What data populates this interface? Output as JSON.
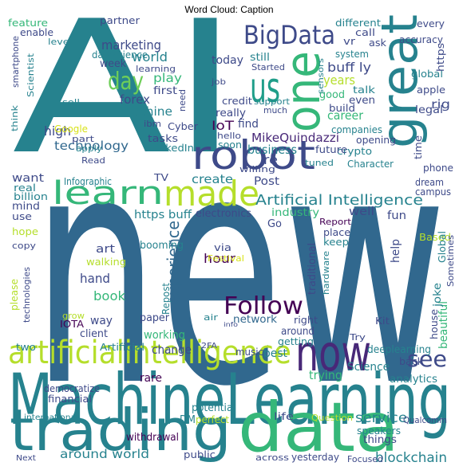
{
  "title": "Word Cloud: Caption",
  "words": [
    "AI",
    "new",
    "MachineLearning",
    "trading",
    "data",
    "great",
    "one",
    "us",
    "robot",
    "learn",
    "made",
    "BigData",
    "now",
    "artificialintelligence",
    "Follow",
    "day",
    "see",
    "experience",
    "Artificial Intelligence",
    "MikeQuindazzi",
    "blockchain",
    "around world",
    "service",
    "business",
    "technology",
    "high",
    "IoT",
    "find",
    "marketing",
    "world",
    "play",
    "first",
    "forex",
    "machine",
    "today",
    "still",
    "years",
    "buff ly",
    "career",
    "crypto",
    "create",
    "Post",
    "re",
    "https buff",
    "electronics",
    "industry",
    "well",
    "fun",
    "Go",
    "Report",
    "Based",
    "keep",
    "place",
    "help",
    "hour",
    "hand",
    "book",
    "art",
    "walking",
    "booming",
    "via",
    "Festival",
    "traditional",
    "hardware",
    "network",
    "Repost",
    "paper",
    "working",
    "change",
    "2FA",
    "best",
    "trying",
    "Science",
    "beautiful",
    "deeplearning",
    "back",
    "analytics",
    "Kit",
    "around",
    "getting",
    "right",
    "joke",
    "house",
    "Sometimes",
    "Global",
    "phone",
    "campus",
    "dream",
    "time",
    "Character",
    "tuned",
    "future",
    "companies",
    "opening",
    "talk",
    "good",
    "even",
    "build",
    "legal",
    "rig",
    "apple",
    "global",
    "accuracy",
    "system",
    "vr",
    "call",
    "ask",
    "different",
    "every",
    "https",
    "feature",
    "level",
    "enable",
    "partner",
    "datascience",
    "smartphone",
    "Scientist",
    "week",
    "learning",
    "sell",
    "think",
    "Google",
    "Read",
    "Infographic",
    "apply",
    "part",
    "LinkedIn",
    "tasks",
    "Cyber",
    "ibm",
    "want",
    "real",
    "billion",
    "mind",
    "use",
    "hope",
    "copy",
    "please",
    "technologies",
    "two",
    "democratize",
    "financial",
    "Artificial",
    "client",
    "IOTA",
    "grow",
    "way",
    "rare",
    "withdrawal",
    "international",
    "Next",
    "potential",
    "DM",
    "perfect",
    "public",
    "speakers",
    "Qualcomm",
    "things",
    "Question",
    "life",
    "yesterday",
    "across",
    "Focused",
    "music",
    "Try",
    "air",
    "info",
    "sensors",
    "Started",
    "much",
    "credit",
    "support",
    "really",
    "hello",
    "soon",
    "job",
    "need",
    "TV",
    "willing"
  ]
}
